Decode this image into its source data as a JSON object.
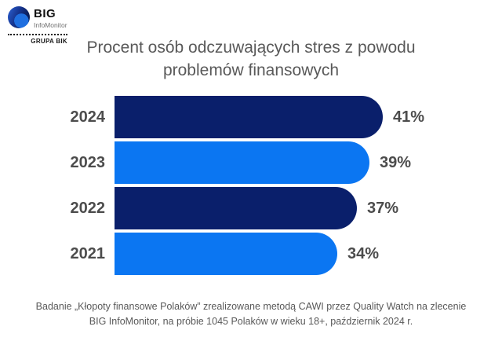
{
  "logo": {
    "brand": "BIG",
    "subbrand": "InfoMonitor",
    "group": "GRUPA BIK"
  },
  "chart_data": {
    "type": "bar",
    "orientation": "horizontal",
    "title": "Procent osób odczuwających stres z powodu problemów finansowych",
    "categories": [
      "2024",
      "2023",
      "2022",
      "2021"
    ],
    "values": [
      41,
      39,
      37,
      34
    ],
    "value_labels": [
      "41%",
      "39%",
      "37%",
      "34%"
    ],
    "bar_colors": [
      "#0a1f6b",
      "#0b76f2",
      "#0a1f6b",
      "#0b76f2"
    ],
    "xlabel": "",
    "ylabel": "",
    "xlim": [
      0,
      48
    ],
    "grid": false,
    "legend": false,
    "value_label_position": "right-of-bar"
  },
  "footer": {
    "line1": "Badanie „Kłopoty finansowe Polaków” zrealizowane metodą CAWI przez Quality Watch na zlecenie",
    "line2": "BIG InfoMonitor, na próbie 1045 Polaków w wieku 18+, październik 2024 r."
  },
  "colors": {
    "navy": "#0a1f6b",
    "blue": "#0b76f2",
    "title_text": "#595959",
    "label_text": "#4c4c4c",
    "footer_text": "#595959",
    "background": "#ffffff"
  }
}
